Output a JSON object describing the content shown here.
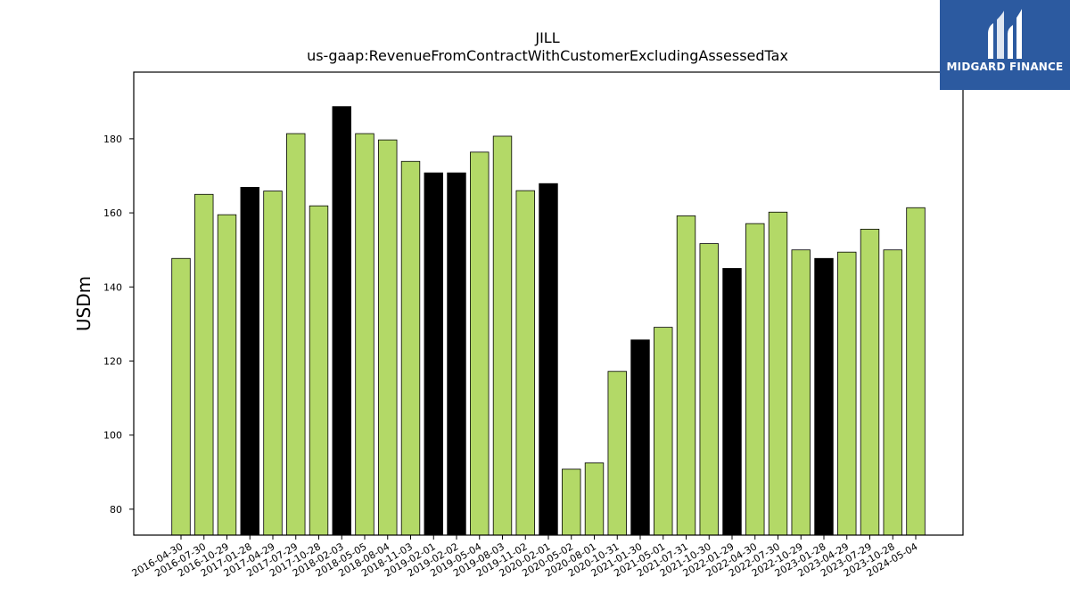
{
  "logo": {
    "name": "MIDGARD FINANCE",
    "background": "#2c5aa0"
  },
  "chart_data": {
    "type": "bar",
    "title": "JILL",
    "subtitle": "us-gaap:RevenueFromContractWithCustomerExcludingAssessedTax",
    "xlabel": "",
    "ylabel": "USDm",
    "ylim": [
      73,
      198
    ],
    "yticks": [
      80,
      100,
      120,
      140,
      160,
      180
    ],
    "grid": false,
    "colors": {
      "default": "#b3d967",
      "highlight": "#000000",
      "edge": "#000000"
    },
    "categories": [
      "2016-04-30",
      "2016-07-30",
      "2016-10-29",
      "2017-01-28",
      "2017-04-29",
      "2017-07-29",
      "2017-10-28",
      "2018-02-03",
      "2018-05-05",
      "2018-08-04",
      "2018-11-03",
      "2019-02-01",
      "2019-02-02",
      "2019-05-04",
      "2019-08-03",
      "2019-11-02",
      "2020-02-01",
      "2020-05-02",
      "2020-08-01",
      "2020-10-31",
      "2021-01-30",
      "2021-05-01",
      "2021-07-31",
      "2021-10-30",
      "2022-01-29",
      "2022-04-30",
      "2022-07-30",
      "2022-10-29",
      "2023-01-28",
      "2023-04-29",
      "2023-07-29",
      "2023-10-28",
      "2024-05-04"
    ],
    "values": [
      147.7,
      165.0,
      159.5,
      166.9,
      165.9,
      181.4,
      161.9,
      188.7,
      181.4,
      179.7,
      173.9,
      170.8,
      170.8,
      176.4,
      180.7,
      166.0,
      167.9,
      90.8,
      92.5,
      117.2,
      125.7,
      129.1,
      159.2,
      151.7,
      145.0,
      157.1,
      160.2,
      150.0,
      147.7,
      149.4,
      155.6,
      150.0,
      161.4
    ],
    "highlight": [
      false,
      false,
      false,
      true,
      false,
      false,
      false,
      true,
      false,
      false,
      false,
      true,
      true,
      false,
      false,
      false,
      true,
      false,
      false,
      false,
      true,
      false,
      false,
      false,
      true,
      false,
      false,
      false,
      true,
      false,
      false,
      false,
      false
    ]
  }
}
